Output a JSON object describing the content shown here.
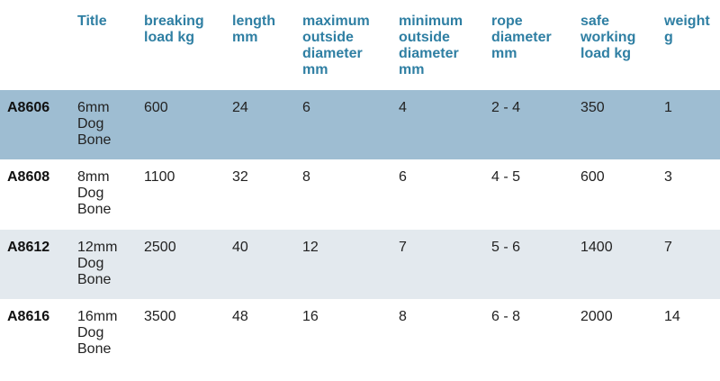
{
  "table": {
    "header": [
      "",
      "Title",
      "breaking load kg",
      "length mm",
      "maximum outside diameter mm",
      "minimum outside diameter mm",
      "rope diameter mm",
      "safe working load kg",
      "weight g"
    ],
    "rows": [
      [
        "A8606",
        "6mm Dog Bone",
        "600",
        "24",
        "6",
        "4",
        "2 - 4",
        "350",
        "1"
      ],
      [
        "A8608",
        "8mm Dog Bone",
        "1100",
        "32",
        "8",
        "6",
        "4 - 5",
        "600",
        "3"
      ],
      [
        "A8612",
        "12mm Dog Bone",
        "2500",
        "40",
        "12",
        "7",
        "5 - 6",
        "1400",
        "7"
      ],
      [
        "A8616",
        "16mm Dog Bone",
        "3500",
        "48",
        "16",
        "8",
        "6 - 8",
        "2000",
        "14"
      ]
    ]
  }
}
